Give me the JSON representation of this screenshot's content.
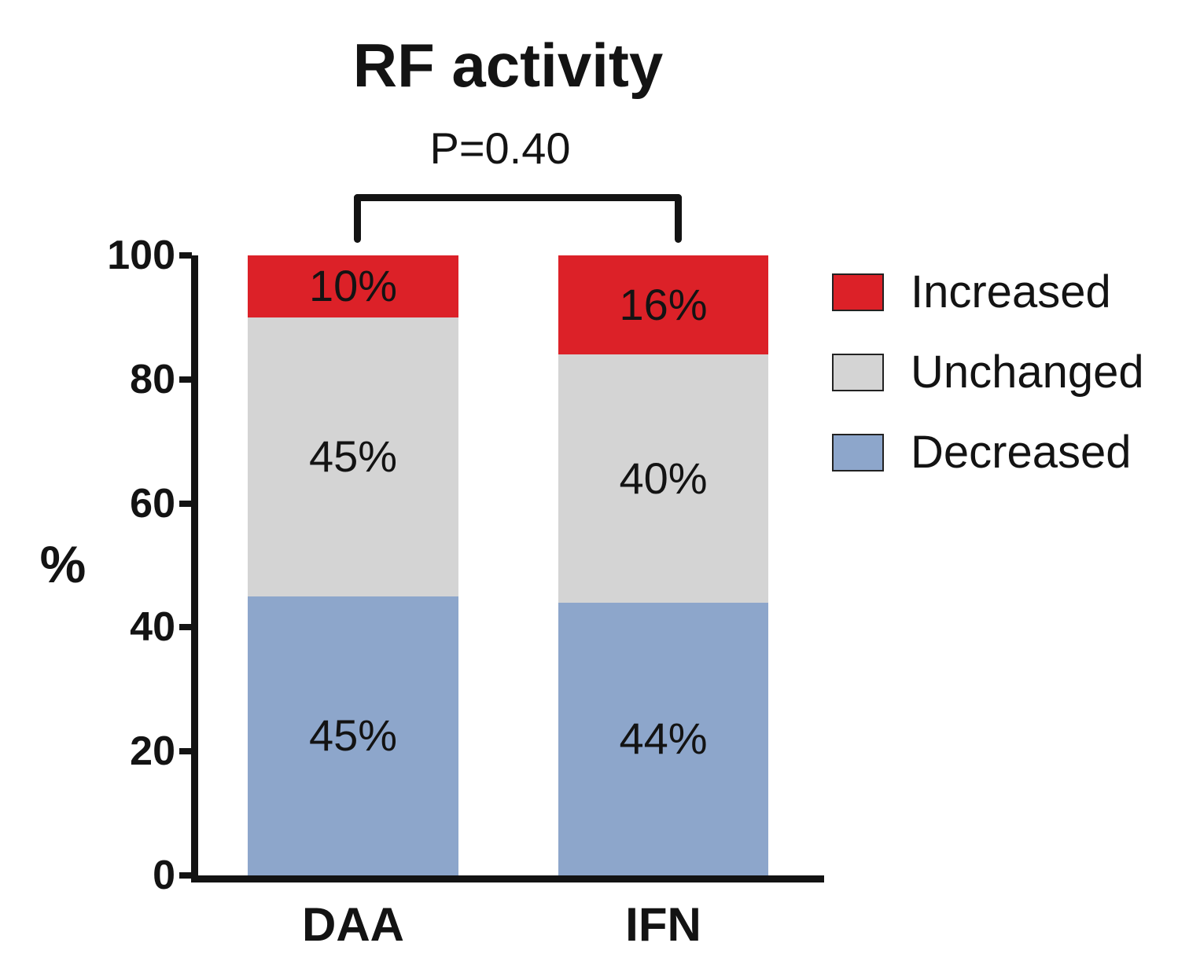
{
  "title": "RF activity",
  "annotation": {
    "p_value": "P=0.40"
  },
  "y_axis": {
    "label": "%",
    "ticks": [
      100,
      80,
      60,
      40,
      20,
      0
    ],
    "min": 0,
    "max": 100
  },
  "x_axis": {
    "categories": [
      "DAA",
      "IFN"
    ]
  },
  "colors": {
    "increased": "#DC2128",
    "unchanged": "#D4D4D4",
    "decreased": "#8DA6CB",
    "axis": "#131313"
  },
  "chart_data": {
    "type": "bar",
    "stacked": true,
    "title": "RF activity",
    "annotation": "P=0.40",
    "categories": [
      "DAA",
      "IFN"
    ],
    "series_order": "top-to-bottom",
    "series": [
      {
        "name": "Increased",
        "color": "#DC2128",
        "values": [
          10,
          16
        ],
        "labels": [
          "10%",
          "16%"
        ]
      },
      {
        "name": "Unchanged",
        "color": "#D4D4D4",
        "values": [
          45,
          40
        ],
        "labels": [
          "45%",
          "40%"
        ]
      },
      {
        "name": "Decreased",
        "color": "#8DA6CB",
        "values": [
          45,
          44
        ],
        "labels": [
          "45%",
          "44%"
        ]
      }
    ],
    "xlabel": "",
    "ylabel": "%",
    "ylim": [
      0,
      100
    ],
    "grid": false,
    "legend_position": "right"
  },
  "legend": {
    "items": [
      {
        "label": "Increased",
        "color": "#DC2128"
      },
      {
        "label": "Unchanged",
        "color": "#D4D4D4"
      },
      {
        "label": "Decreased",
        "color": "#8DA6CB"
      }
    ]
  }
}
